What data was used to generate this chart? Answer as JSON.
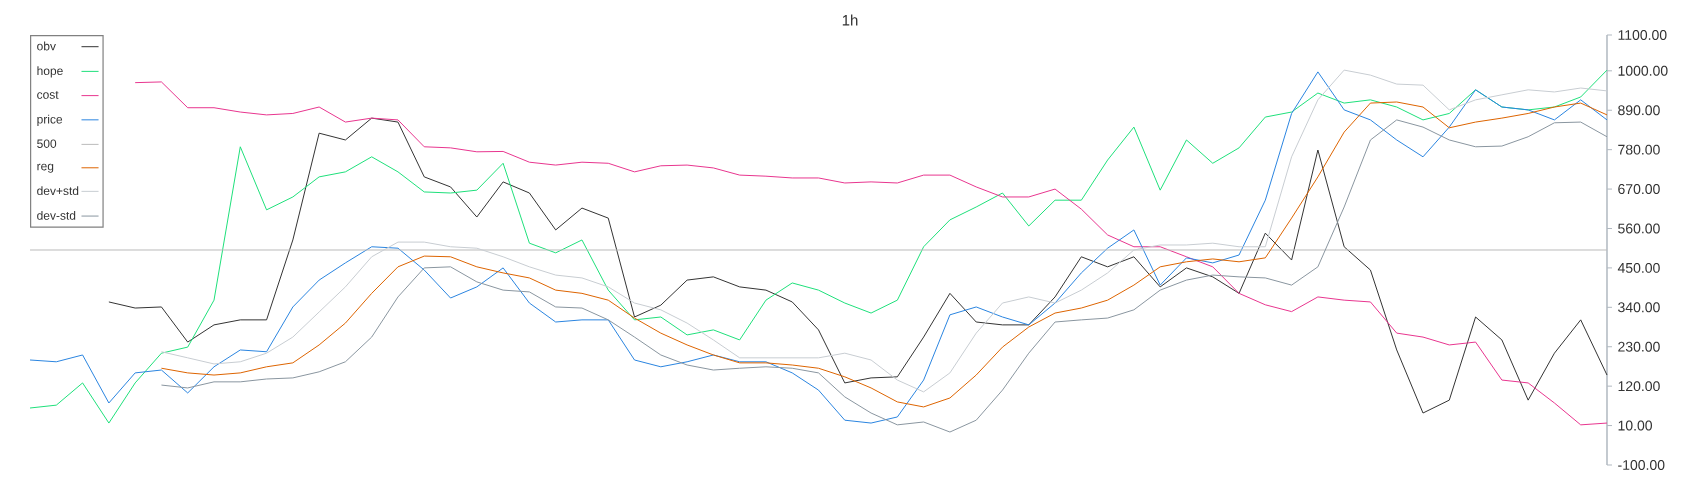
{
  "chart_data": {
    "type": "line",
    "title": "1h",
    "categories": [
      null,
      null,
      null,
      null,
      null,
      null,
      null,
      null,
      null,
      null,
      null,
      null,
      null,
      null,
      null,
      null,
      null,
      null,
      null,
      null,
      null,
      null,
      null,
      null,
      null,
      null,
      null,
      null,
      null,
      null,
      null,
      null,
      null,
      null,
      null,
      null,
      null,
      null,
      null,
      null,
      null,
      null,
      null,
      null,
      null,
      null,
      null,
      null,
      null,
      null,
      null,
      null,
      null,
      null,
      null,
      null,
      null,
      null,
      null,
      null,
      null
    ],
    "ylim": [
      -100,
      1100
    ],
    "yticks": [
      {
        "value": -100,
        "label": "-100.00"
      },
      {
        "value": 10,
        "label": "10.00"
      },
      {
        "value": 120,
        "label": "120.00"
      },
      {
        "value": 230,
        "label": "230.00"
      },
      {
        "value": 340,
        "label": "340.00"
      },
      {
        "value": 450,
        "label": "450.00"
      },
      {
        "value": 560,
        "label": "560.00"
      },
      {
        "value": 670,
        "label": "670.00"
      },
      {
        "value": 780,
        "label": "780.00"
      },
      {
        "value": 890,
        "label": "890.00"
      },
      {
        "value": 1000,
        "label": "1000.00"
      },
      {
        "value": 1100,
        "label": "1100.00"
      }
    ],
    "legend": "top left",
    "tick_labels": "y",
    "grid": false,
    "series": [
      {
        "name": "obv",
        "color": "#333333",
        "values": [
          null,
          null,
          null,
          355,
          338,
          341,
          243,
          291,
          305,
          305,
          528,
          826,
          807,
          868,
          857,
          704,
          676,
          592,
          690,
          659,
          556,
          617,
          589,
          313,
          346,
          416,
          425,
          397,
          388,
          355,
          277,
          129,
          143,
          146,
          257,
          379,
          299,
          291,
          291,
          369,
          481,
          453,
          481,
          397,
          450,
          425,
          379,
          547,
          472,
          779,
          509,
          444,
          221,
          45,
          81,
          313,
          249,
          81,
          212,
          305,
          151
        ]
      },
      {
        "name": "hope",
        "color": "#1ee07a",
        "values": [
          59,
          67,
          129,
          17,
          129,
          212,
          229,
          360,
          788,
          612,
          648,
          704,
          718,
          760,
          718,
          662,
          659,
          667,
          742,
          519,
          492,
          528,
          388,
          305,
          313,
          263,
          277,
          249,
          360,
          408,
          388,
          352,
          324,
          360,
          509,
          584,
          620,
          659,
          567,
          639,
          639,
          751,
          843,
          667,
          807,
          742,
          785,
          871,
          885,
          938,
          910,
          919,
          899,
          863,
          881,
          947,
          899,
          891,
          899,
          927,
          1002
        ]
      },
      {
        "name": "cost",
        "color": "#e8358f",
        "values": [
          null,
          null,
          null,
          null,
          967,
          969,
          897,
          897,
          885,
          877,
          881,
          899,
          857,
          868,
          863,
          788,
          785,
          774,
          775,
          745,
          737,
          745,
          742,
          718,
          735,
          737,
          729,
          709,
          706,
          701,
          701,
          687,
          690,
          687,
          709,
          709,
          676,
          648,
          648,
          670,
          614,
          542,
          509,
          509,
          481,
          453,
          379,
          347,
          328,
          369,
          360,
          355,
          268,
          257,
          235,
          243,
          137,
          129,
          73,
          12,
          17
        ]
      },
      {
        "name": "price",
        "color": "#2a85e0",
        "values": [
          193,
          188,
          207,
          73,
          157,
          165,
          101,
          174,
          221,
          216,
          341,
          416,
          464,
          509,
          505,
          444,
          366,
          397,
          450,
          352,
          299,
          305,
          305,
          193,
          174,
          188,
          207,
          188,
          188,
          157,
          109,
          25,
          17,
          34,
          137,
          319,
          341,
          313,
          291,
          352,
          436,
          505,
          556,
          402,
          478,
          464,
          486,
          639,
          881,
          997,
          891,
          863,
          807,
          760,
          843,
          947,
          899,
          891,
          863,
          919,
          863
        ]
      },
      {
        "name": "500",
        "color": "#bbbbbb",
        "values": [
          500,
          500,
          500,
          500,
          500,
          500,
          500,
          500,
          500,
          500,
          500,
          500,
          500,
          500,
          500,
          500,
          500,
          500,
          500,
          500,
          500,
          500,
          500,
          500,
          500,
          500,
          500,
          500,
          500,
          500,
          500,
          500,
          500,
          500,
          500,
          500,
          500,
          500,
          500,
          500,
          500,
          500,
          500,
          500,
          500,
          500,
          500,
          500,
          500,
          500,
          500,
          500,
          500,
          500,
          500,
          500,
          500,
          500,
          500,
          500,
          500
        ]
      },
      {
        "name": "reg",
        "color": "#dd6300",
        "values": [
          null,
          null,
          null,
          null,
          null,
          170,
          157,
          151,
          157,
          174,
          185,
          235,
          296,
          379,
          453,
          483,
          481,
          453,
          436,
          422,
          388,
          379,
          360,
          310,
          268,
          235,
          207,
          185,
          185,
          179,
          170,
          146,
          115,
          76,
          62,
          87,
          151,
          229,
          285,
          324,
          338,
          360,
          402,
          453,
          467,
          475,
          467,
          478,
          589,
          704,
          829,
          910,
          913,
          899,
          841,
          857,
          868,
          881,
          899,
          910,
          877
        ]
      },
      {
        "name": "dev+std",
        "color": "#c8cdd2",
        "values": [
          null,
          null,
          null,
          null,
          null,
          216,
          199,
          182,
          188,
          212,
          257,
          327,
          397,
          481,
          522,
          522,
          509,
          505,
          481,
          453,
          430,
          422,
          397,
          352,
          333,
          296,
          249,
          199,
          199,
          199,
          199,
          212,
          193,
          137,
          104,
          157,
          268,
          352,
          369,
          352,
          388,
          436,
          500,
          514,
          514,
          519,
          509,
          509,
          760,
          919,
          1002,
          988,
          963,
          960,
          891,
          919,
          933,
          947,
          941,
          952,
          944
        ]
      },
      {
        "name": "dev-std",
        "color": "#8a96a0",
        "values": [
          null,
          null,
          null,
          null,
          null,
          123,
          115,
          132,
          132,
          140,
          143,
          160,
          188,
          257,
          369,
          450,
          453,
          411,
          388,
          383,
          341,
          338,
          305,
          257,
          207,
          179,
          165,
          170,
          174,
          170,
          157,
          90,
          45,
          12,
          20,
          -8,
          25,
          109,
          212,
          299,
          305,
          310,
          333,
          388,
          416,
          430,
          425,
          422,
          402,
          453,
          620,
          807,
          863,
          843,
          807,
          788,
          790,
          816,
          855,
          857,
          816
        ]
      }
    ]
  }
}
